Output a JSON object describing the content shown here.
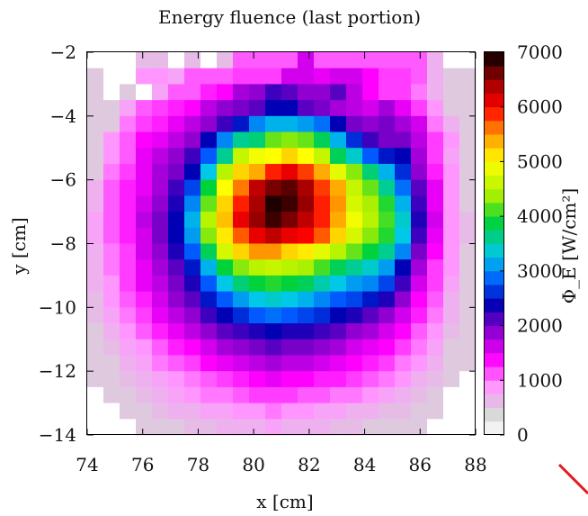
{
  "chart_data": {
    "type": "heatmap",
    "title": "Energy fluence (last portion)",
    "xlabel": "x [cm]",
    "ylabel": "y [cm]",
    "colorbar_label": "Φ_E [W/cm²]",
    "xlim": [
      74,
      88
    ],
    "ylim": [
      -14,
      -2
    ],
    "clim": [
      0,
      7000
    ],
    "x_ticks": [
      74,
      76,
      78,
      80,
      82,
      84,
      86,
      88
    ],
    "y_ticks": [
      -14,
      -12,
      -10,
      -8,
      -6,
      -4,
      -2
    ],
    "colorbar_ticks": [
      0,
      1000,
      2000,
      3000,
      4000,
      5000,
      6000,
      7000
    ],
    "grid": false,
    "nx": 24,
    "ny": 24,
    "cell_size_cm": 0.5,
    "values_note_order": "rows from top (y=-2) to bottom (y=-14), columns from left (x=74) to right (x=88)",
    "values": [
      [
        0,
        0,
        0,
        600,
        600,
        0,
        600,
        0,
        600,
        1100,
        1100,
        1100,
        1100,
        1600,
        1100,
        1100,
        1100,
        1100,
        1100,
        1100,
        1100,
        700,
        0,
        0
      ],
      [
        500,
        0,
        0,
        900,
        900,
        800,
        1100,
        1100,
        1100,
        1200,
        1200,
        1200,
        1600,
        1600,
        1500,
        1600,
        1600,
        1400,
        1200,
        1200,
        1100,
        700,
        500,
        500
      ],
      [
        500,
        0,
        500,
        0,
        800,
        1100,
        1100,
        1300,
        1400,
        1800,
        1900,
        2200,
        2100,
        1900,
        1900,
        2100,
        1700,
        1400,
        1200,
        1200,
        1000,
        700,
        500,
        500
      ],
      [
        500,
        500,
        800,
        1100,
        1200,
        1300,
        1400,
        1700,
        1900,
        2000,
        2100,
        2400,
        2400,
        2100,
        2000,
        1800,
        1700,
        1600,
        1800,
        1500,
        1200,
        900,
        500,
        500
      ],
      [
        500,
        500,
        1000,
        1200,
        1300,
        1500,
        1700,
        1900,
        2200,
        2500,
        3000,
        3200,
        3200,
        3100,
        2900,
        2400,
        2000,
        1900,
        2000,
        1800,
        1600,
        1000,
        700,
        500
      ],
      [
        500,
        900,
        1100,
        1400,
        1500,
        1700,
        1900,
        2400,
        3000,
        3600,
        3700,
        4200,
        4300,
        4200,
        3800,
        3200,
        2600,
        2200,
        2000,
        2000,
        1700,
        1200,
        900,
        500
      ],
      [
        500,
        900,
        1100,
        1500,
        1700,
        1900,
        2200,
        2800,
        3600,
        4600,
        4900,
        5000,
        5200,
        5000,
        4600,
        3800,
        3400,
        2800,
        2500,
        2400,
        1800,
        1200,
        800,
        500
      ],
      [
        500,
        1000,
        1200,
        1500,
        1800,
        2000,
        2400,
        3300,
        4500,
        5200,
        5400,
        5900,
        6100,
        5800,
        5400,
        4800,
        4300,
        3700,
        3200,
        2600,
        1900,
        1300,
        900,
        500
      ],
      [
        700,
        1100,
        1300,
        1500,
        1800,
        2200,
        2700,
        3900,
        5000,
        5600,
        6300,
        6600,
        6700,
        6400,
        5800,
        5400,
        4600,
        4200,
        3600,
        2900,
        2100,
        1500,
        900,
        500
      ],
      [
        700,
        1100,
        1300,
        1600,
        1900,
        2300,
        3000,
        4200,
        5200,
        5900,
        6400,
        6900,
        6800,
        6500,
        5900,
        5500,
        4700,
        4400,
        4000,
        3200,
        2200,
        1500,
        900,
        500
      ],
      [
        800,
        1100,
        1300,
        1700,
        2000,
        2400,
        3200,
        4500,
        5300,
        6100,
        6500,
        6800,
        6600,
        6300,
        5900,
        5400,
        4900,
        4500,
        4100,
        3400,
        2300,
        1600,
        900,
        600
      ],
      [
        800,
        1100,
        1300,
        1600,
        2000,
        2400,
        3100,
        4300,
        5100,
        5700,
        6100,
        6300,
        6100,
        6000,
        5700,
        5200,
        4700,
        4300,
        4000,
        3300,
        2200,
        1500,
        900,
        600
      ],
      [
        700,
        1000,
        1200,
        1600,
        1900,
        2300,
        2800,
        3800,
        4700,
        5200,
        5500,
        5500,
        5200,
        5100,
        4800,
        4500,
        4200,
        3900,
        3600,
        3000,
        2000,
        1400,
        900,
        500
      ],
      [
        700,
        1000,
        1200,
        1500,
        1800,
        2100,
        2500,
        3200,
        3900,
        4300,
        4500,
        4600,
        4500,
        4400,
        4100,
        3800,
        3600,
        3400,
        3100,
        2400,
        1800,
        1200,
        900,
        500
      ],
      [
        700,
        900,
        1200,
        1500,
        1700,
        2000,
        2300,
        2800,
        3300,
        3700,
        3900,
        4000,
        3900,
        3800,
        3500,
        3300,
        3100,
        3000,
        2700,
        2200,
        1600,
        1200,
        800,
        500
      ],
      [
        600,
        900,
        1100,
        1300,
        1600,
        1900,
        2100,
        2500,
        2800,
        3100,
        3300,
        3400,
        3300,
        3200,
        3000,
        2800,
        2700,
        2500,
        2300,
        1900,
        1400,
        1100,
        700,
        500
      ],
      [
        600,
        800,
        1000,
        1200,
        1500,
        1700,
        1900,
        2200,
        2400,
        2600,
        2800,
        2900,
        2800,
        2700,
        2600,
        2400,
        2300,
        2100,
        1900,
        1600,
        1300,
        1000,
        700,
        500
      ],
      [
        500,
        700,
        900,
        1100,
        1300,
        1500,
        1700,
        1900,
        2100,
        2200,
        2300,
        2400,
        2300,
        2300,
        2200,
        2100,
        1900,
        1800,
        1600,
        1400,
        1100,
        900,
        600,
        500
      ],
      [
        500,
        600,
        800,
        900,
        1100,
        1300,
        1400,
        1600,
        1800,
        1900,
        2000,
        2100,
        2000,
        2000,
        1900,
        1800,
        1600,
        1500,
        1400,
        1200,
        1000,
        800,
        500,
        500
      ],
      [
        500,
        500,
        700,
        800,
        1000,
        1100,
        1200,
        1400,
        1500,
        1600,
        1700,
        1800,
        1700,
        1700,
        1600,
        1500,
        1400,
        1300,
        1200,
        1000,
        900,
        700,
        500,
        500
      ],
      [
        500,
        500,
        600,
        700,
        800,
        900,
        1000,
        1100,
        1200,
        1300,
        1400,
        1500,
        1400,
        1400,
        1300,
        1300,
        1200,
        1100,
        1000,
        900,
        700,
        600,
        500,
        0
      ],
      [
        0,
        500,
        500,
        600,
        700,
        800,
        900,
        1000,
        1000,
        1100,
        1200,
        1200,
        1200,
        1100,
        1100,
        1000,
        1000,
        900,
        800,
        700,
        600,
        500,
        0,
        0
      ],
      [
        0,
        0,
        500,
        500,
        600,
        700,
        700,
        800,
        800,
        900,
        900,
        1000,
        900,
        900,
        800,
        800,
        700,
        700,
        600,
        600,
        500,
        500,
        0,
        0
      ],
      [
        0,
        0,
        0,
        500,
        500,
        500,
        600,
        600,
        700,
        700,
        700,
        800,
        700,
        700,
        700,
        600,
        600,
        500,
        500,
        500,
        500,
        0,
        0,
        0
      ]
    ]
  }
}
